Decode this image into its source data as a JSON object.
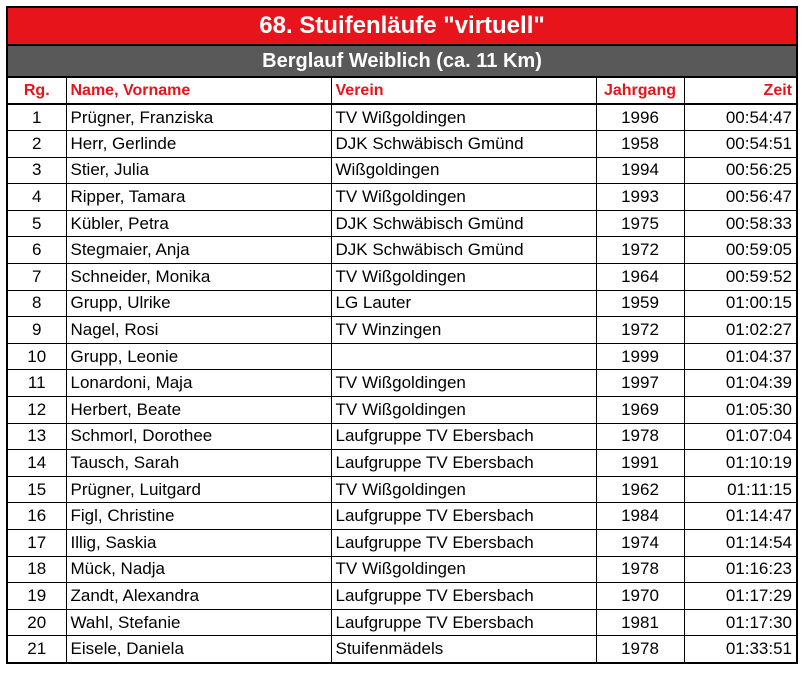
{
  "title": "68. Stuifenläufe \"virtuell\"",
  "subtitle": "Berglauf Weiblich (ca. 11 Km)",
  "columns": {
    "rank": "Rg.",
    "name": "Name, Vorname",
    "club": "Verein",
    "year": "Jahrgang",
    "time": "Zeit"
  },
  "colors": {
    "title_bg": "#e8141b",
    "subtitle_bg": "#595959",
    "header_text": "#e8141b"
  },
  "rows": [
    {
      "rank": "1",
      "name": "Prügner, Franziska",
      "club": "TV Wißgoldingen",
      "year": "1996",
      "time": "00:54:47"
    },
    {
      "rank": "2",
      "name": "Herr, Gerlinde",
      "club": "DJK Schwäbisch Gmünd",
      "year": "1958",
      "time": "00:54:51"
    },
    {
      "rank": "3",
      "name": "Stier, Julia",
      "club": "Wißgoldingen",
      "year": "1994",
      "time": "00:56:25"
    },
    {
      "rank": "4",
      "name": "Ripper, Tamara",
      "club": "TV Wißgoldingen",
      "year": "1993",
      "time": "00:56:47"
    },
    {
      "rank": "5",
      "name": "Kübler, Petra",
      "club": "DJK Schwäbisch Gmünd",
      "year": "1975",
      "time": "00:58:33"
    },
    {
      "rank": "6",
      "name": "Stegmaier, Anja",
      "club": "DJK Schwäbisch Gmünd",
      "year": "1972",
      "time": "00:59:05"
    },
    {
      "rank": "7",
      "name": "Schneider, Monika",
      "club": "TV Wißgoldingen",
      "year": "1964",
      "time": "00:59:52"
    },
    {
      "rank": "8",
      "name": "Grupp, Ulrike",
      "club": "LG Lauter",
      "year": "1959",
      "time": "01:00:15"
    },
    {
      "rank": "9",
      "name": "Nagel, Rosi",
      "club": "TV Winzingen",
      "year": "1972",
      "time": "01:02:27"
    },
    {
      "rank": "10",
      "name": "Grupp, Leonie",
      "club": "",
      "year": "1999",
      "time": "01:04:37"
    },
    {
      "rank": "11",
      "name": "Lonardoni, Maja",
      "club": "TV Wißgoldingen",
      "year": "1997",
      "time": "01:04:39"
    },
    {
      "rank": "12",
      "name": "Herbert, Beate",
      "club": "TV Wißgoldingen",
      "year": "1969",
      "time": "01:05:30"
    },
    {
      "rank": "13",
      "name": "Schmorl, Dorothee",
      "club": "Laufgruppe TV Ebersbach",
      "year": "1978",
      "time": "01:07:04"
    },
    {
      "rank": "14",
      "name": "Tausch, Sarah",
      "club": "Laufgruppe TV Ebersbach",
      "year": "1991",
      "time": "01:10:19"
    },
    {
      "rank": "15",
      "name": "Prügner, Luitgard",
      "club": "TV Wißgoldingen",
      "year": "1962",
      "time": "01:11:15"
    },
    {
      "rank": "16",
      "name": "Figl, Christine",
      "club": "Laufgruppe TV Ebersbach",
      "year": "1984",
      "time": "01:14:47"
    },
    {
      "rank": "17",
      "name": "Illig, Saskia",
      "club": "Laufgruppe TV Ebersbach",
      "year": "1974",
      "time": "01:14:54"
    },
    {
      "rank": "18",
      "name": "Mück, Nadja",
      "club": "TV Wißgoldingen",
      "year": "1978",
      "time": "01:16:23"
    },
    {
      "rank": "19",
      "name": "Zandt, Alexandra",
      "club": "Laufgruppe TV Ebersbach",
      "year": "1970",
      "time": "01:17:29"
    },
    {
      "rank": "20",
      "name": "Wahl, Stefanie",
      "club": "Laufgruppe TV Ebersbach",
      "year": "1981",
      "time": "01:17:30"
    },
    {
      "rank": "21",
      "name": "Eisele, Daniela",
      "club": "Stuifenmädels",
      "year": "1978",
      "time": "01:33:51"
    }
  ]
}
